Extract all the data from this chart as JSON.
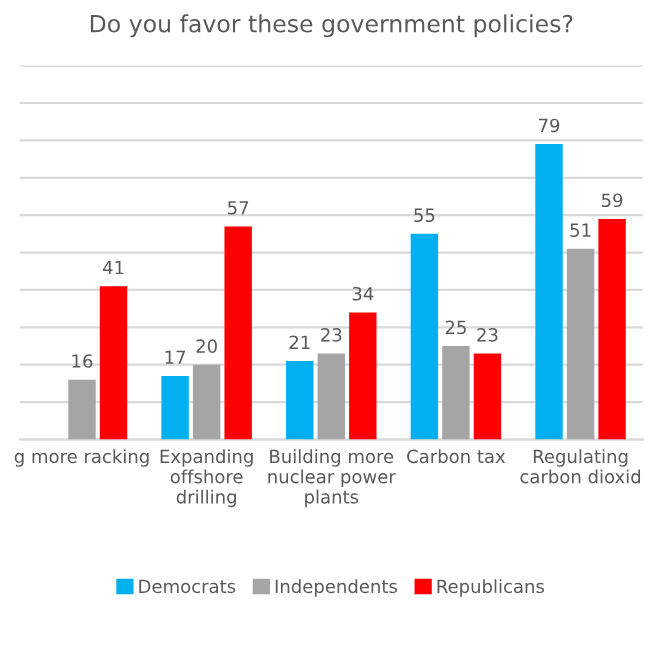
{
  "chart_data": {
    "type": "bar",
    "title": "Do you favor these government policies?",
    "categories": [
      "g more racking",
      "Expanding offshore drilling",
      "Building more nuclear power plants",
      "Carbon tax",
      "Regulating carbon dioxid"
    ],
    "series": [
      {
        "name": "Democrats",
        "color": "#00b0f0",
        "values": [
          null,
          17,
          21,
          55,
          79
        ]
      },
      {
        "name": "Independents",
        "color": "#a5a5a5",
        "values": [
          16,
          20,
          23,
          25,
          51
        ]
      },
      {
        "name": "Republicans",
        "color": "#ff0000",
        "values": [
          41,
          57,
          34,
          23,
          59
        ]
      }
    ],
    "ylim": [
      0,
      100
    ],
    "yticks": [
      {
        "value": 0,
        "label": null
      },
      {
        "value": 10,
        "label": null
      },
      {
        "value": 20,
        "label": null
      },
      {
        "value": 30,
        "label": null
      },
      {
        "value": 40,
        "label": null
      },
      {
        "value": 50,
        "label": null
      },
      {
        "value": 60,
        "label": null
      },
      {
        "value": 70,
        "label": null
      },
      {
        "value": 80,
        "label": null
      },
      {
        "value": 90,
        "label": null
      },
      {
        "value": 100,
        "label": null
      }
    ],
    "tick_labels": "x",
    "grid": "y",
    "legend": "bottom",
    "data_labels": true
  }
}
